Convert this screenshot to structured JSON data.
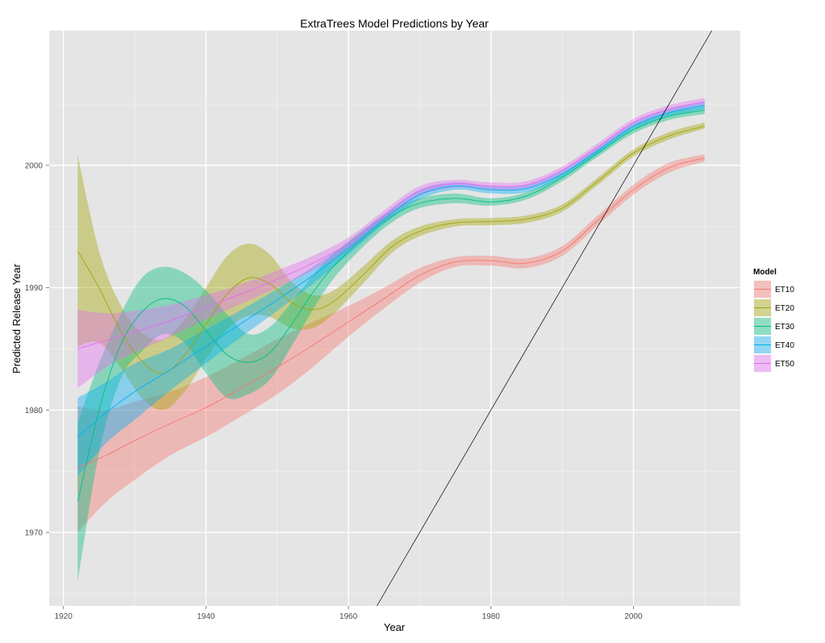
{
  "chart_data": {
    "type": "line",
    "title": "ExtraTrees Model Predictions by Year",
    "xlabel": "Year",
    "ylabel": "Predicted Release Year",
    "xlim": [
      1918,
      2015
    ],
    "ylim": [
      1964,
      2011
    ],
    "x_ticks": [
      1920,
      1940,
      1960,
      1980,
      2000
    ],
    "y_ticks": [
      1970,
      1980,
      1990,
      2000
    ],
    "grid": true,
    "background": "#e5e5e5",
    "legend": {
      "title": "Model",
      "position": "right"
    },
    "reference_line": {
      "description": "identity line y = x",
      "color": "#000000",
      "slope": 1,
      "intercept": 0
    },
    "series": [
      {
        "name": "ET10",
        "color": "#F8766D",
        "x": [
          1922,
          1926,
          1930,
          1935,
          1940,
          1945,
          1950,
          1955,
          1960,
          1965,
          1970,
          1975,
          1980,
          1985,
          1990,
          1995,
          2000,
          2005,
          2010
        ],
        "y": [
          1975.3,
          1976.3,
          1977.5,
          1978.9,
          1980.2,
          1981.8,
          1983.5,
          1985.3,
          1987.2,
          1989.1,
          1991.0,
          1992.1,
          1992.2,
          1992.0,
          1993.0,
          1995.5,
          1998.0,
          1999.8,
          2000.6
        ],
        "lower": [
          1970.0,
          1972.5,
          1974.3,
          1976.3,
          1977.8,
          1979.5,
          1981.3,
          1983.5,
          1986.0,
          1988.3,
          1990.4,
          1991.7,
          1991.8,
          1991.6,
          1992.6,
          1995.1,
          1997.6,
          1999.4,
          2000.3
        ],
        "upper": [
          1980.3,
          1980.0,
          1980.7,
          1981.5,
          1982.7,
          1984.2,
          1985.8,
          1987.2,
          1988.5,
          1990.0,
          1991.6,
          1992.5,
          1992.6,
          1992.4,
          1993.4,
          1995.9,
          1998.4,
          2000.2,
          2000.9
        ]
      },
      {
        "name": "ET20",
        "color": "#A3A500",
        "x": [
          1922,
          1925,
          1928,
          1931,
          1934,
          1937,
          1940,
          1943,
          1946,
          1949,
          1952,
          1955,
          1958,
          1962,
          1966,
          1970,
          1975,
          1980,
          1985,
          1990,
          1995,
          2000,
          2005,
          2010
        ],
        "y": [
          1993.0,
          1990.0,
          1986.5,
          1984.0,
          1983.0,
          1984.5,
          1987.0,
          1989.5,
          1990.8,
          1990.3,
          1988.8,
          1988.2,
          1988.9,
          1991.0,
          1993.3,
          1994.6,
          1995.3,
          1995.4,
          1995.6,
          1996.5,
          1998.7,
          2001.0,
          2002.4,
          2003.2
        ],
        "lower": [
          1985.2,
          1985.5,
          1983.5,
          1981.0,
          1980.0,
          1981.5,
          1984.2,
          1986.6,
          1987.7,
          1987.6,
          1986.7,
          1986.7,
          1987.9,
          1990.3,
          1992.8,
          1994.2,
          1995.0,
          1995.1,
          1995.3,
          1996.2,
          1998.4,
          2000.7,
          2002.1,
          2003.0
        ],
        "upper": [
          2000.8,
          1993.0,
          1988.6,
          1986.3,
          1985.8,
          1987.4,
          1990.0,
          1992.6,
          1993.6,
          1992.7,
          1990.5,
          1989.4,
          1989.8,
          1991.7,
          1993.8,
          1995.0,
          1995.6,
          1995.7,
          1995.9,
          1996.8,
          1999.0,
          2001.3,
          2002.7,
          2003.5
        ]
      },
      {
        "name": "ET30",
        "color": "#00BF7D",
        "x": [
          1922,
          1925,
          1928,
          1931,
          1934,
          1937,
          1940,
          1943,
          1946,
          1949,
          1952,
          1955,
          1958,
          1962,
          1966,
          1970,
          1975,
          1980,
          1985,
          1990,
          1995,
          2000,
          2005,
          2010
        ],
        "y": [
          1972.5,
          1980.0,
          1985.3,
          1988.0,
          1989.1,
          1988.5,
          1986.5,
          1984.5,
          1983.9,
          1984.7,
          1987.0,
          1989.6,
          1991.8,
          1994.0,
          1995.8,
          1996.9,
          1997.3,
          1997.0,
          1997.5,
          1999.0,
          2001.0,
          2002.9,
          2004.0,
          2004.5
        ],
        "lower": [
          1966.0,
          1976.5,
          1982.5,
          1984.8,
          1986.2,
          1985.5,
          1983.0,
          1981.0,
          1981.3,
          1982.5,
          1985.2,
          1988.2,
          1990.8,
          1993.3,
          1995.3,
          1996.5,
          1996.9,
          1996.7,
          1997.2,
          1998.7,
          2000.7,
          2002.6,
          2003.7,
          2004.2
        ],
        "upper": [
          1979.0,
          1983.8,
          1987.8,
          1990.8,
          1991.7,
          1991.2,
          1989.8,
          1987.8,
          1986.2,
          1986.8,
          1988.8,
          1991.0,
          1992.8,
          1994.7,
          1996.3,
          1997.3,
          1997.7,
          1997.3,
          1997.8,
          1999.3,
          2001.3,
          2003.2,
          2004.3,
          2004.8
        ]
      },
      {
        "name": "ET40",
        "color": "#00B0F6",
        "x": [
          1922,
          1926,
          1930,
          1935,
          1940,
          1945,
          1950,
          1955,
          1960,
          1965,
          1970,
          1975,
          1980,
          1985,
          1990,
          1995,
          2000,
          2005,
          2010
        ],
        "y": [
          1977.8,
          1979.8,
          1981.5,
          1983.3,
          1985.2,
          1987.1,
          1989.0,
          1991.0,
          1993.2,
          1995.6,
          1997.6,
          1998.3,
          1998.0,
          1998.1,
          1999.3,
          2001.2,
          2003.2,
          2004.3,
          2004.9
        ],
        "lower": [
          1974.6,
          1977.3,
          1979.2,
          1981.6,
          1983.8,
          1986.0,
          1988.1,
          1990.3,
          1992.7,
          1995.2,
          1997.2,
          1998.0,
          1997.7,
          1997.8,
          1999.0,
          2000.9,
          2002.9,
          2004.0,
          2004.6
        ],
        "upper": [
          1981.0,
          1982.3,
          1983.8,
          1985.0,
          1986.6,
          1988.2,
          1989.9,
          1991.7,
          1993.7,
          1996.0,
          1998.0,
          1998.6,
          1998.3,
          1998.4,
          1999.6,
          2001.5,
          2003.5,
          2004.6,
          2005.2
        ]
      },
      {
        "name": "ET50",
        "color": "#E76BF3",
        "x": [
          1922,
          1926,
          1930,
          1935,
          1940,
          1945,
          1950,
          1955,
          1960,
          1965,
          1970,
          1975,
          1980,
          1985,
          1990,
          1995,
          2000,
          2005,
          2010
        ],
        "y": [
          1985.0,
          1985.7,
          1986.4,
          1987.3,
          1988.4,
          1989.5,
          1990.7,
          1992.0,
          1993.6,
          1995.9,
          1997.9,
          1998.5,
          1998.3,
          1998.4,
          1999.6,
          2001.5,
          2003.5,
          2004.6,
          2005.2
        ],
        "lower": [
          1981.8,
          1983.5,
          1984.7,
          1986.0,
          1987.4,
          1988.7,
          1990.0,
          1991.4,
          1993.1,
          1995.5,
          1997.5,
          1998.2,
          1998.0,
          1998.1,
          1999.3,
          2001.2,
          2003.2,
          2004.3,
          2004.9
        ],
        "upper": [
          1988.2,
          1987.9,
          1988.1,
          1988.6,
          1989.4,
          1990.3,
          1991.4,
          1992.6,
          1994.1,
          1996.3,
          1998.3,
          1998.8,
          1998.6,
          1998.7,
          1999.9,
          2001.8,
          2003.8,
          2004.9,
          2005.5
        ]
      }
    ]
  }
}
